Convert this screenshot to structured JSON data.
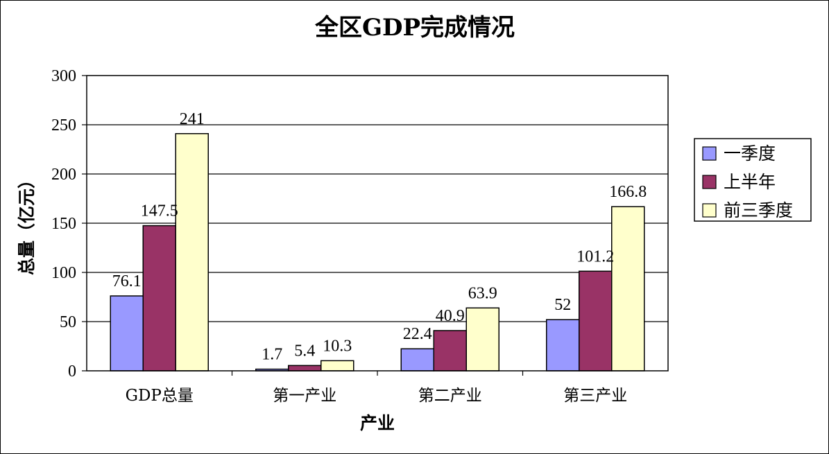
{
  "chart_data": {
    "type": "bar",
    "title": "全区GDP完成情况",
    "xlabel": "产业",
    "ylabel": "总量（亿元）",
    "ylim": [
      0,
      300
    ],
    "yticks": [
      0,
      50,
      100,
      150,
      200,
      250,
      300
    ],
    "grid": true,
    "legend_position": "right",
    "categories": [
      "GDP总量",
      "第一产业",
      "第二产业",
      "第三产业"
    ],
    "series": [
      {
        "name": "一季度",
        "values": [
          76.1,
          1.7,
          22.4,
          52
        ],
        "color": "#9999ff"
      },
      {
        "name": "上半年",
        "values": [
          147.5,
          5.4,
          40.9,
          101.2
        ],
        "color": "#993366"
      },
      {
        "name": "前三季度",
        "values": [
          241,
          10.3,
          63.9,
          166.8
        ],
        "color": "#ffffcc"
      }
    ]
  }
}
